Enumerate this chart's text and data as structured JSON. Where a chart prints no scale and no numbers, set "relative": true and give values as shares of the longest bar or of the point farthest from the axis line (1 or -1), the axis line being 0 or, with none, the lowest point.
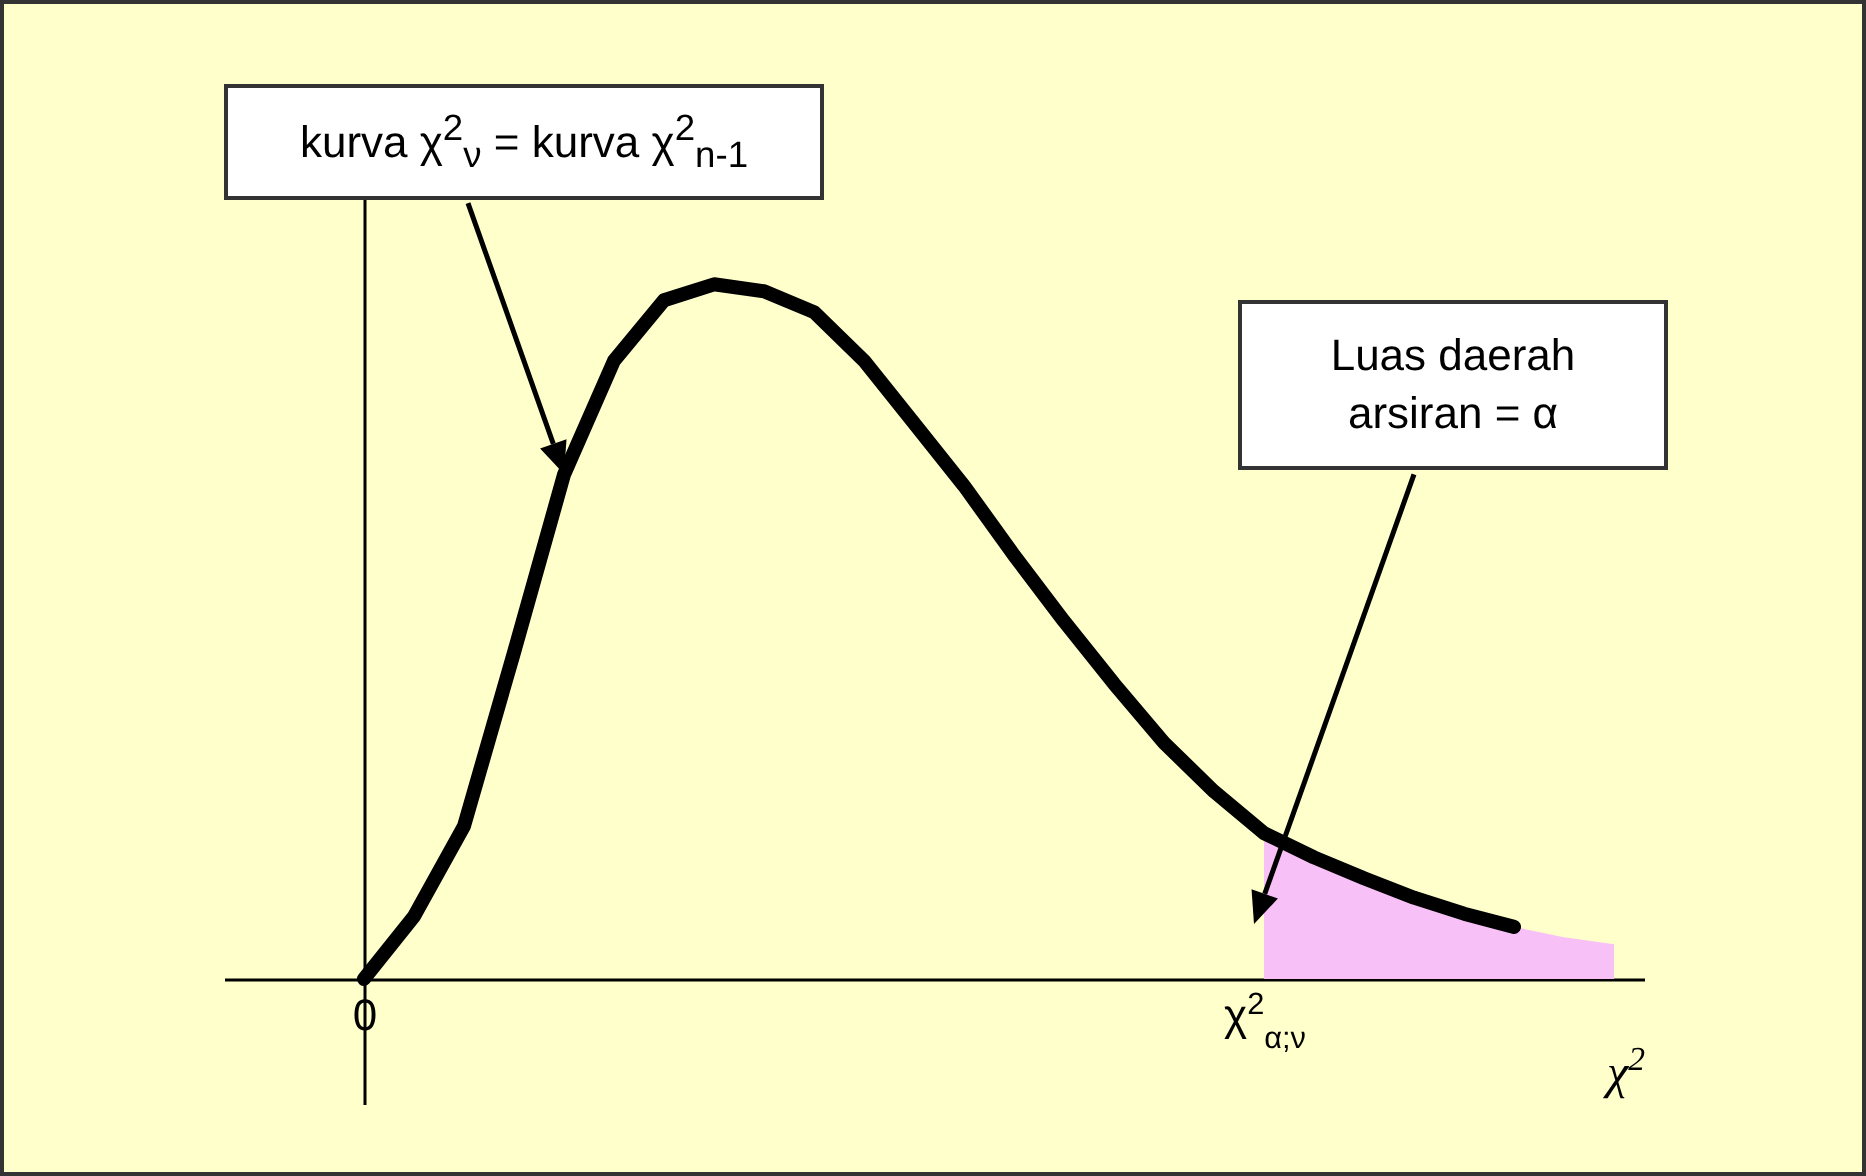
{
  "chart_data": {
    "type": "line",
    "relative": true,
    "xlabel": "χ$^{2}$",
    "categories": [
      "0",
      null,
      null,
      null,
      null,
      null,
      null,
      null,
      null,
      null,
      null,
      null,
      null,
      null,
      null,
      null,
      null,
      null,
      "χ$^{2}$$_{α;ν}$",
      null,
      null,
      null,
      null,
      null,
      null,
      null
    ],
    "series": [
      {
        "color": "#000000",
        "values": [
          0,
          0.09,
          0.22,
          0.47,
          0.726,
          0.89,
          0.977,
          1,
          0.99,
          0.96,
          0.89,
          0.8,
          0.71,
          0.61,
          0.515,
          0.425,
          0.34,
          0.27,
          0.21,
          0.175,
          0.145,
          0.117,
          0.094,
          0.075,
          null,
          null
        ]
      },
      {
        "type": "area",
        "color": "#f7c0f7",
        "values": [
          null,
          null,
          null,
          null,
          null,
          null,
          null,
          null,
          null,
          null,
          null,
          null,
          null,
          null,
          null,
          null,
          null,
          null,
          0.21,
          0.175,
          0.145,
          0.117,
          0.094,
          0.075,
          0.06,
          0.05
        ]
      }
    ],
    "annotations": [
      "kurva χ$^{2}$$_{ν}$ = kurva χ$^{2}$$_{n-1}$",
      "Luas daerah arsiran = α"
    ]
  }
}
